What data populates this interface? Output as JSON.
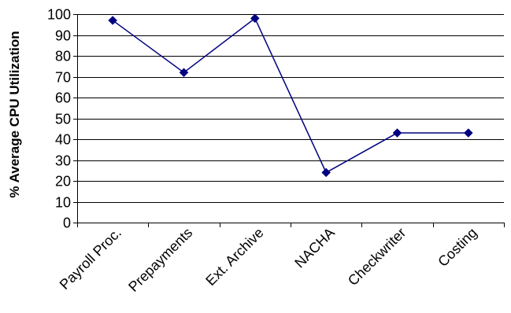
{
  "chart_data": {
    "type": "line",
    "title": "",
    "xlabel": "",
    "ylabel": "% Average CPU Utilization",
    "categories": [
      "Payroll Proc.",
      "Prepayments",
      "Ext. Archive",
      "NACHA",
      "Checkwriter",
      "Costing"
    ],
    "yticks": [
      "0",
      "10",
      "20",
      "30",
      "40",
      "50",
      "60",
      "70",
      "80",
      "90",
      "100"
    ],
    "ylim": [
      0,
      100
    ],
    "grid": true,
    "legend": "none",
    "series": [
      {
        "values": [
          97,
          72,
          98,
          24,
          43,
          43
        ],
        "color": "#000080"
      }
    ]
  }
}
